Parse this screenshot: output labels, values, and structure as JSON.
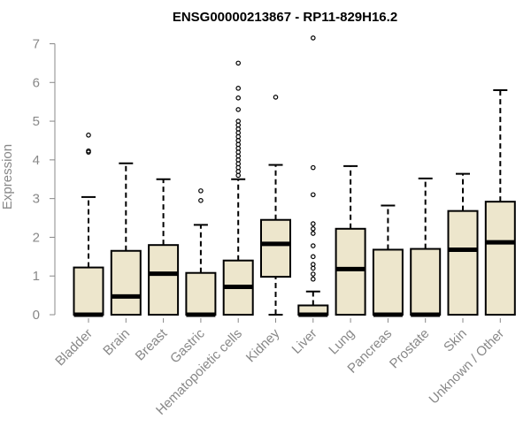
{
  "chart_data": {
    "type": "boxplot",
    "title": "ENSG00000213867 - RP11-829H16.2",
    "xlabel": "",
    "ylabel": "Expression",
    "ylim": [
      0,
      7
    ],
    "yticks": [
      0,
      1,
      2,
      3,
      4,
      5,
      6,
      7
    ],
    "grid": false,
    "box_fill": "#ede6cc",
    "line_color": "#000000",
    "categories": [
      "Bladder",
      "Brain",
      "Breast",
      "Gastric",
      "Hematopoietic cells",
      "Kidney",
      "Liver",
      "Lung",
      "Pancreas",
      "Prostate",
      "Skin",
      "Unknown / Other"
    ],
    "boxes": [
      {
        "min": 0,
        "q1": 0,
        "median": 0,
        "q3": 1.22,
        "max": 3.04,
        "outliers": [
          4.2,
          4.23,
          4.64
        ]
      },
      {
        "min": 0,
        "q1": 0,
        "median": 0.47,
        "q3": 1.65,
        "max": 3.91,
        "outliers": []
      },
      {
        "min": 0,
        "q1": 0,
        "median": 1.06,
        "q3": 1.8,
        "max": 3.5,
        "outliers": []
      },
      {
        "min": 0,
        "q1": 0,
        "median": 0,
        "q3": 1.08,
        "max": 2.32,
        "outliers": [
          2.95,
          3.2
        ]
      },
      {
        "min": 0,
        "q1": 0,
        "median": 0.72,
        "q3": 1.4,
        "max": 3.5,
        "outliers": [
          3.6,
          3.7,
          3.8,
          3.9,
          4.0,
          4.1,
          4.2,
          4.3,
          4.4,
          4.5,
          4.6,
          4.7,
          4.8,
          4.9,
          5.0,
          5.3,
          5.6,
          5.85,
          6.5
        ]
      },
      {
        "min": 0,
        "q1": 0.98,
        "median": 1.83,
        "q3": 2.45,
        "max": 3.87,
        "outliers": [
          5.62
        ]
      },
      {
        "min": 0,
        "q1": 0,
        "median": 0,
        "q3": 0.24,
        "max": 0.6,
        "outliers": [
          0.92,
          1.05,
          1.2,
          1.3,
          1.5,
          1.78,
          2.1,
          2.22,
          2.35,
          3.1,
          3.8,
          7.15
        ]
      },
      {
        "min": 0,
        "q1": 0,
        "median": 1.18,
        "q3": 2.22,
        "max": 3.84,
        "outliers": []
      },
      {
        "min": 0,
        "q1": 0,
        "median": 0,
        "q3": 1.68,
        "max": 2.82,
        "outliers": []
      },
      {
        "min": 0,
        "q1": 0,
        "median": 0,
        "q3": 1.7,
        "max": 3.52,
        "outliers": []
      },
      {
        "min": 0,
        "q1": 0,
        "median": 1.68,
        "q3": 2.68,
        "max": 3.64,
        "outliers": []
      },
      {
        "min": 0,
        "q1": 0,
        "median": 1.87,
        "q3": 2.92,
        "max": 5.8,
        "outliers": []
      }
    ]
  }
}
